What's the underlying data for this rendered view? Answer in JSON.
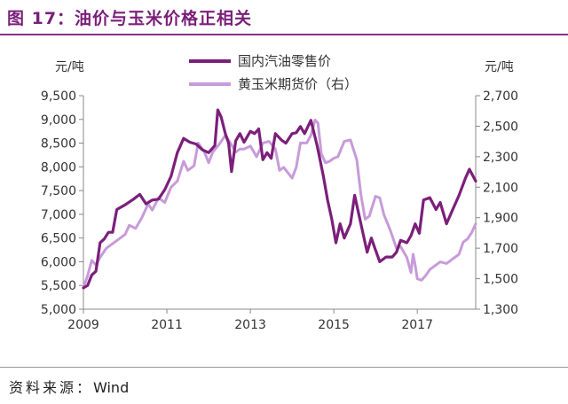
{
  "figure": {
    "title": "图 17：油价与玉米价格正相关",
    "source_label": "资料来源：",
    "source_value": "Wind"
  },
  "chart_data": {
    "type": "line",
    "x_ticks": [
      "2009",
      "2011",
      "2013",
      "2015",
      "2017"
    ],
    "xlim": [
      2009.0,
      2018.4
    ],
    "left_axis": {
      "unit": "元/吨",
      "ylim": [
        5000,
        9500
      ],
      "ticks": [
        5000,
        5500,
        6000,
        6500,
        7000,
        7500,
        8000,
        8500,
        9000,
        9500
      ]
    },
    "right_axis": {
      "unit": "元/吨",
      "ylim": [
        1300,
        2700
      ],
      "ticks": [
        1300,
        1500,
        1700,
        1900,
        2100,
        2300,
        2500,
        2700
      ]
    },
    "legend_position": "top-center",
    "grid": false,
    "series": [
      {
        "name": "国内汽油零售价",
        "axis": "left",
        "color": "#7b1f7b",
        "points": [
          [
            2009.0,
            5450
          ],
          [
            2009.1,
            5500
          ],
          [
            2009.2,
            5720
          ],
          [
            2009.3,
            5800
          ],
          [
            2009.4,
            6400
          ],
          [
            2009.5,
            6480
          ],
          [
            2009.6,
            6620
          ],
          [
            2009.7,
            6620
          ],
          [
            2009.8,
            7100
          ],
          [
            2010.0,
            7200
          ],
          [
            2010.2,
            7320
          ],
          [
            2010.35,
            7420
          ],
          [
            2010.5,
            7220
          ],
          [
            2010.65,
            7300
          ],
          [
            2010.8,
            7320
          ],
          [
            2010.95,
            7520
          ],
          [
            2011.1,
            7800
          ],
          [
            2011.25,
            8300
          ],
          [
            2011.4,
            8600
          ],
          [
            2011.55,
            8520
          ],
          [
            2011.7,
            8480
          ],
          [
            2011.85,
            8360
          ],
          [
            2012.0,
            8300
          ],
          [
            2012.15,
            8450
          ],
          [
            2012.22,
            9200
          ],
          [
            2012.3,
            9050
          ],
          [
            2012.4,
            8700
          ],
          [
            2012.48,
            8500
          ],
          [
            2012.55,
            7900
          ],
          [
            2012.65,
            8550
          ],
          [
            2012.75,
            8700
          ],
          [
            2012.85,
            8520
          ],
          [
            2013.0,
            8750
          ],
          [
            2013.1,
            8700
          ],
          [
            2013.2,
            8800
          ],
          [
            2013.3,
            8150
          ],
          [
            2013.4,
            8300
          ],
          [
            2013.5,
            8180
          ],
          [
            2013.6,
            8700
          ],
          [
            2013.75,
            8560
          ],
          [
            2013.85,
            8500
          ],
          [
            2014.0,
            8700
          ],
          [
            2014.1,
            8720
          ],
          [
            2014.2,
            8850
          ],
          [
            2014.3,
            8700
          ],
          [
            2014.45,
            8980
          ],
          [
            2014.6,
            8450
          ],
          [
            2014.75,
            7800
          ],
          [
            2014.85,
            7300
          ],
          [
            2014.95,
            6900
          ],
          [
            2015.05,
            6400
          ],
          [
            2015.15,
            6800
          ],
          [
            2015.25,
            6500
          ],
          [
            2015.4,
            6800
          ],
          [
            2015.5,
            7400
          ],
          [
            2015.6,
            7000
          ],
          [
            2015.7,
            6600
          ],
          [
            2015.8,
            6200
          ],
          [
            2015.9,
            6500
          ],
          [
            2016.0,
            6250
          ],
          [
            2016.1,
            6000
          ],
          [
            2016.25,
            6100
          ],
          [
            2016.4,
            6100
          ],
          [
            2016.5,
            6200
          ],
          [
            2016.6,
            6450
          ],
          [
            2016.75,
            6400
          ],
          [
            2016.85,
            6550
          ],
          [
            2016.95,
            6800
          ],
          [
            2017.05,
            6600
          ],
          [
            2017.15,
            7300
          ],
          [
            2017.3,
            7350
          ],
          [
            2017.45,
            7100
          ],
          [
            2017.55,
            7250
          ],
          [
            2017.7,
            6800
          ],
          [
            2017.85,
            7100
          ],
          [
            2018.0,
            7400
          ],
          [
            2018.15,
            7750
          ],
          [
            2018.25,
            7950
          ],
          [
            2018.4,
            7700
          ]
        ]
      },
      {
        "name": "黄玉米期货价（右）",
        "axis": "right",
        "color": "#c79bd9",
        "points": [
          [
            2009.0,
            1440
          ],
          [
            2009.1,
            1520
          ],
          [
            2009.2,
            1620
          ],
          [
            2009.3,
            1590
          ],
          [
            2009.4,
            1640
          ],
          [
            2009.55,
            1700
          ],
          [
            2009.7,
            1730
          ],
          [
            2009.85,
            1760
          ],
          [
            2010.0,
            1790
          ],
          [
            2010.1,
            1850
          ],
          [
            2010.25,
            1830
          ],
          [
            2010.4,
            1900
          ],
          [
            2010.55,
            1990
          ],
          [
            2010.65,
            1950
          ],
          [
            2010.8,
            2030
          ],
          [
            2010.95,
            2000
          ],
          [
            2011.1,
            2100
          ],
          [
            2011.25,
            2140
          ],
          [
            2011.4,
            2270
          ],
          [
            2011.5,
            2210
          ],
          [
            2011.65,
            2240
          ],
          [
            2011.75,
            2390
          ],
          [
            2011.9,
            2330
          ],
          [
            2012.0,
            2260
          ],
          [
            2012.1,
            2330
          ],
          [
            2012.25,
            2380
          ],
          [
            2012.4,
            2440
          ],
          [
            2012.5,
            2400
          ],
          [
            2012.65,
            2330
          ],
          [
            2012.75,
            2350
          ],
          [
            2012.85,
            2350
          ],
          [
            2013.0,
            2370
          ],
          [
            2013.15,
            2300
          ],
          [
            2013.3,
            2390
          ],
          [
            2013.45,
            2400
          ],
          [
            2013.6,
            2350
          ],
          [
            2013.7,
            2210
          ],
          [
            2013.8,
            2230
          ],
          [
            2014.0,
            2160
          ],
          [
            2014.1,
            2230
          ],
          [
            2014.2,
            2390
          ],
          [
            2014.35,
            2390
          ],
          [
            2014.45,
            2440
          ],
          [
            2014.55,
            2540
          ],
          [
            2014.62,
            2520
          ],
          [
            2014.7,
            2320
          ],
          [
            2014.8,
            2260
          ],
          [
            2014.9,
            2270
          ],
          [
            2015.0,
            2290
          ],
          [
            2015.1,
            2300
          ],
          [
            2015.25,
            2400
          ],
          [
            2015.4,
            2410
          ],
          [
            2015.55,
            2280
          ],
          [
            2015.65,
            2050
          ],
          [
            2015.75,
            1890
          ],
          [
            2015.85,
            1910
          ],
          [
            2016.0,
            2040
          ],
          [
            2016.1,
            2030
          ],
          [
            2016.2,
            1920
          ],
          [
            2016.35,
            1820
          ],
          [
            2016.5,
            1700
          ],
          [
            2016.6,
            1710
          ],
          [
            2016.75,
            1640
          ],
          [
            2016.85,
            1540
          ],
          [
            2016.9,
            1660
          ],
          [
            2016.95,
            1590
          ],
          [
            2017.0,
            1500
          ],
          [
            2017.1,
            1490
          ],
          [
            2017.2,
            1520
          ],
          [
            2017.3,
            1560
          ],
          [
            2017.45,
            1590
          ],
          [
            2017.55,
            1610
          ],
          [
            2017.7,
            1600
          ],
          [
            2017.8,
            1620
          ],
          [
            2017.9,
            1640
          ],
          [
            2018.0,
            1660
          ],
          [
            2018.1,
            1740
          ],
          [
            2018.2,
            1760
          ],
          [
            2018.3,
            1800
          ],
          [
            2018.4,
            1860
          ]
        ]
      }
    ]
  }
}
